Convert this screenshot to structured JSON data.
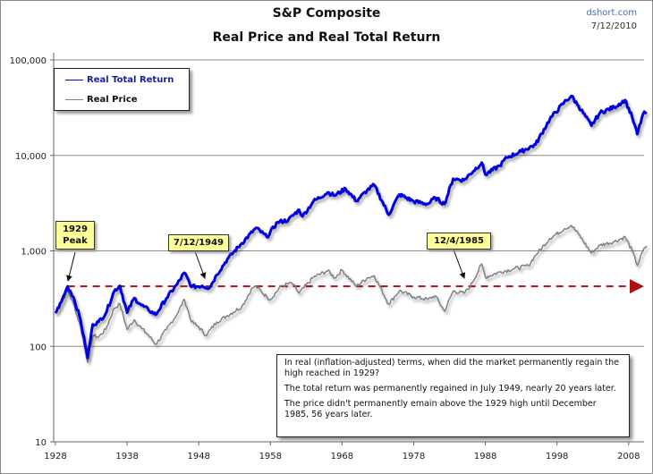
{
  "header": {
    "title": "S&P Composite",
    "subtitle": "Real Price and Real Total Return",
    "source": "dshort.com",
    "date": "7/12/2010"
  },
  "legend": {
    "items": [
      {
        "label": "Real Total Return",
        "color": "#0000dd"
      },
      {
        "label": "Real Price",
        "color": "#808080"
      }
    ]
  },
  "callouts": {
    "peak_1929": {
      "line1": "1929",
      "line2": "Peak"
    },
    "date_1949": "7/12/1949",
    "date_1985": "12/4/1985"
  },
  "note": {
    "p1": "In real (inflation-adjusted) terms, when did the market permanently regain the high reached in 1929?",
    "p2": "The total return was permanently regained in July 1949, nearly 20 years later.",
    "p3": "The price didn't permanently emain above the 1929 high until December 1985, 56 years later."
  },
  "chart_data": {
    "type": "line",
    "title": "S&P Composite",
    "subtitle": "Real Price and Real Total Return",
    "xlabel": "",
    "ylabel": "",
    "yscale": "log",
    "ylim": [
      10,
      100000
    ],
    "xlim": [
      1928,
      2011
    ],
    "grid": true,
    "legend_position": "top-left",
    "yticks": [
      100000,
      10000,
      1000,
      100,
      10
    ],
    "ytick_labels": [
      "100,000",
      "10,000",
      "1,000",
      "100",
      "10"
    ],
    "xticks": [
      1928,
      1938,
      1948,
      1958,
      1968,
      1978,
      1988,
      1998,
      2008
    ],
    "xtick_labels": [
      "1928",
      "1938",
      "1948",
      "1958",
      "1968",
      "1978",
      "1988",
      "1998",
      "2008"
    ],
    "reference_line": {
      "label": "1929 high",
      "value": 425,
      "color": "#b01010",
      "style": "dashed"
    },
    "series": [
      {
        "name": "Real Total Return",
        "color": "#0000dd",
        "points": [
          [
            1928.0,
            223
          ],
          [
            1928.8,
            290
          ],
          [
            1929.7,
            425
          ],
          [
            1930.5,
            330
          ],
          [
            1931.5,
            190
          ],
          [
            1932.5,
            76
          ],
          [
            1933.2,
            170
          ],
          [
            1934.0,
            180
          ],
          [
            1935.0,
            220
          ],
          [
            1936.2,
            380
          ],
          [
            1937.0,
            430
          ],
          [
            1938.0,
            225
          ],
          [
            1939.0,
            320
          ],
          [
            1940.0,
            270
          ],
          [
            1941.0,
            240
          ],
          [
            1942.0,
            215
          ],
          [
            1943.5,
            320
          ],
          [
            1945.0,
            450
          ],
          [
            1946.0,
            590
          ],
          [
            1947.0,
            420
          ],
          [
            1948.5,
            430
          ],
          [
            1949.5,
            410
          ],
          [
            1950.5,
            560
          ],
          [
            1952.0,
            820
          ],
          [
            1954.0,
            1200
          ],
          [
            1956.0,
            1740
          ],
          [
            1957.5,
            1400
          ],
          [
            1959.0,
            2000
          ],
          [
            1960.5,
            2100
          ],
          [
            1962.0,
            2700
          ],
          [
            1962.5,
            2300
          ],
          [
            1964.0,
            3300
          ],
          [
            1966.0,
            4100
          ],
          [
            1967.0,
            3800
          ],
          [
            1968.5,
            4500
          ],
          [
            1970.0,
            3330
          ],
          [
            1971.5,
            4300
          ],
          [
            1972.5,
            4900
          ],
          [
            1974.5,
            2390
          ],
          [
            1976.0,
            3900
          ],
          [
            1978.0,
            3300
          ],
          [
            1980.0,
            3100
          ],
          [
            1981.0,
            3600
          ],
          [
            1982.3,
            3100
          ],
          [
            1983.5,
            5700
          ],
          [
            1985.0,
            5500
          ],
          [
            1987.5,
            8400
          ],
          [
            1988.0,
            6300
          ],
          [
            1990.0,
            7800
          ],
          [
            1991.0,
            9500
          ],
          [
            1993.0,
            11000
          ],
          [
            1995.0,
            13000
          ],
          [
            1997.0,
            24000
          ],
          [
            1999.0,
            36000
          ],
          [
            2000.0,
            41800
          ],
          [
            2001.0,
            33000
          ],
          [
            2002.8,
            20500
          ],
          [
            2004.0,
            28000
          ],
          [
            2006.0,
            32000
          ],
          [
            2007.5,
            38000
          ],
          [
            2008.5,
            25000
          ],
          [
            2009.2,
            16700
          ],
          [
            2010.0,
            27000
          ],
          [
            2010.5,
            28500
          ]
        ]
      },
      {
        "name": "Real Price",
        "color": "#808080",
        "points": [
          [
            1928.0,
            223
          ],
          [
            1928.8,
            280
          ],
          [
            1929.7,
            383
          ],
          [
            1930.5,
            280
          ],
          [
            1931.5,
            160
          ],
          [
            1932.5,
            68
          ],
          [
            1933.2,
            130
          ],
          [
            1934.0,
            125
          ],
          [
            1935.0,
            150
          ],
          [
            1936.2,
            250
          ],
          [
            1937.0,
            277
          ],
          [
            1938.0,
            150
          ],
          [
            1939.0,
            190
          ],
          [
            1940.0,
            155
          ],
          [
            1941.0,
            130
          ],
          [
            1942.0,
            105
          ],
          [
            1943.5,
            150
          ],
          [
            1945.0,
            220
          ],
          [
            1946.0,
            310
          ],
          [
            1947.0,
            180
          ],
          [
            1948.0,
            160
          ],
          [
            1949.0,
            130
          ],
          [
            1950.5,
            180
          ],
          [
            1952.0,
            210
          ],
          [
            1954.0,
            260
          ],
          [
            1955.5,
            410
          ],
          [
            1956.0,
            425
          ],
          [
            1957.5,
            330
          ],
          [
            1958.0,
            310
          ],
          [
            1959.5,
            430
          ],
          [
            1961.0,
            460
          ],
          [
            1962.0,
            360
          ],
          [
            1964.0,
            530
          ],
          [
            1966.0,
            620
          ],
          [
            1967.0,
            520
          ],
          [
            1968.0,
            630
          ],
          [
            1970.0,
            425
          ],
          [
            1971.5,
            520
          ],
          [
            1972.5,
            550
          ],
          [
            1974.5,
            277
          ],
          [
            1976.0,
            383
          ],
          [
            1978.0,
            330
          ],
          [
            1980.0,
            310
          ],
          [
            1981.0,
            340
          ],
          [
            1982.3,
            233
          ],
          [
            1983.5,
            380
          ],
          [
            1985.0,
            360
          ],
          [
            1985.9,
            425
          ],
          [
            1987.5,
            730
          ],
          [
            1988.0,
            530
          ],
          [
            1990.0,
            600
          ],
          [
            1992.0,
            650
          ],
          [
            1994.0,
            700
          ],
          [
            1995.0,
            900
          ],
          [
            1997.0,
            1350
          ],
          [
            1999.0,
            1700
          ],
          [
            2000.0,
            1850
          ],
          [
            2001.0,
            1500
          ],
          [
            2002.8,
            950
          ],
          [
            2004.0,
            1150
          ],
          [
            2006.0,
            1250
          ],
          [
            2007.5,
            1400
          ],
          [
            2008.5,
            1000
          ],
          [
            2009.2,
            705
          ],
          [
            2010.0,
            1000
          ],
          [
            2010.5,
            1130
          ]
        ]
      }
    ],
    "annotations": [
      {
        "text": "1929 Peak",
        "x": 1929.7,
        "y": 425
      },
      {
        "text": "7/12/1949",
        "x": 1949.5,
        "y": 425
      },
      {
        "text": "12/4/1985",
        "x": 1985.9,
        "y": 425
      }
    ]
  }
}
